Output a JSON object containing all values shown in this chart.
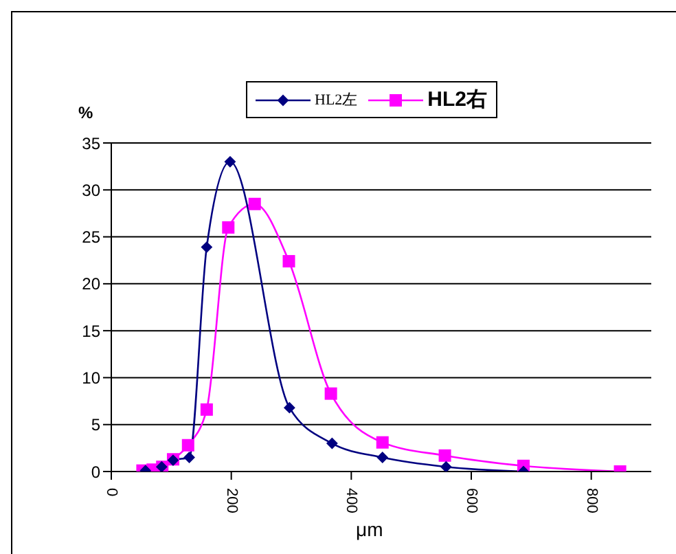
{
  "chart_data": {
    "type": "line",
    "xlabel": "μm",
    "ylabel": "%",
    "xlim": [
      0,
      900
    ],
    "xticks": [
      0,
      200,
      400,
      600,
      800
    ],
    "ylim": [
      0,
      35
    ],
    "yticks": [
      0,
      5,
      10,
      15,
      20,
      25,
      30,
      35
    ],
    "grid": "y",
    "legend": "top",
    "series": [
      {
        "name": "HL2左",
        "color": "#000080",
        "marker": "diamond",
        "x": [
          57,
          84,
          103,
          130,
          159,
          198,
          297,
          368,
          452,
          558,
          687
        ],
        "values": [
          0.1,
          0.5,
          1.2,
          1.5,
          23.9,
          33.0,
          6.8,
          3.0,
          1.5,
          0.5,
          0
        ]
      },
      {
        "name": "HL2右",
        "color": "#ff00ff",
        "marker": "square",
        "x": [
          52,
          69,
          85,
          103,
          128,
          159,
          195,
          239,
          296,
          366,
          452,
          556,
          687,
          848
        ],
        "values": [
          0.1,
          0.2,
          0.5,
          1.3,
          2.8,
          6.6,
          26.0,
          28.5,
          22.4,
          8.3,
          3.1,
          1.7,
          0.6,
          0
        ]
      }
    ]
  }
}
